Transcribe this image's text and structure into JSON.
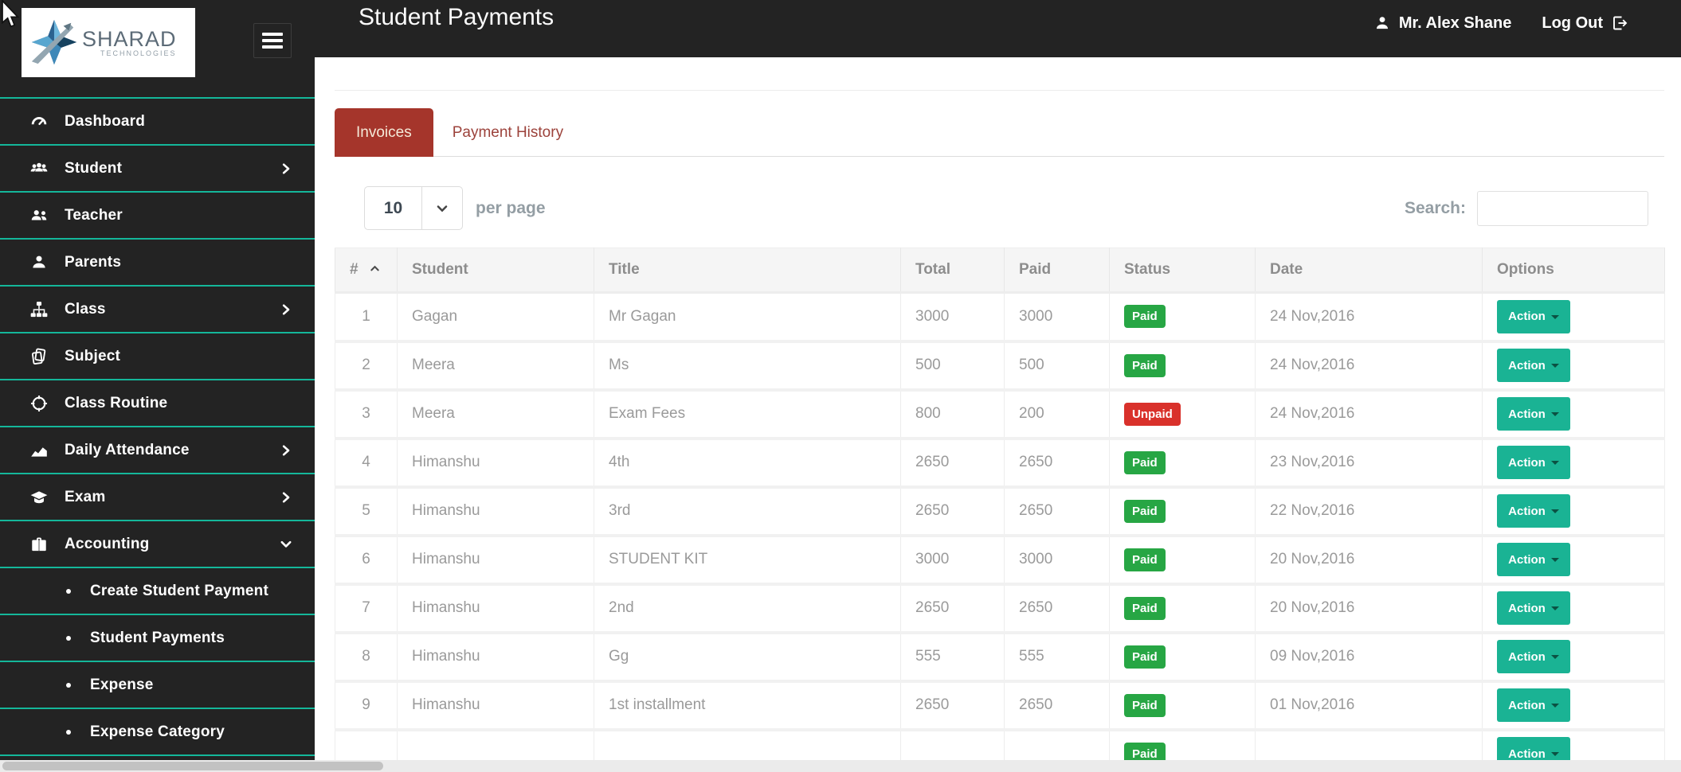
{
  "colors": {
    "header_bg": "#232323",
    "accent_teal": "#14b79a",
    "action_teal": "#1ab394",
    "active_tab_red": "#a5352b",
    "paid_green": "#27a644",
    "unpaid_red": "#d9312b"
  },
  "logo": {
    "brand": "SHARAD",
    "sub": "TECHNOLOGIES"
  },
  "header": {
    "title": "Student Payments",
    "user": "Mr. Alex Shane",
    "logout": "Log Out"
  },
  "sidebar": {
    "items": [
      {
        "label": "Dashboard",
        "icon": "gauge-icon"
      },
      {
        "label": "Student",
        "icon": "students-icon",
        "chevron": "right"
      },
      {
        "label": "Teacher",
        "icon": "teachers-icon"
      },
      {
        "label": "Parents",
        "icon": "parent-icon"
      },
      {
        "label": "Class",
        "icon": "sitemap-icon",
        "chevron": "right"
      },
      {
        "label": "Subject",
        "icon": "books-icon"
      },
      {
        "label": "Class Routine",
        "icon": "target-icon"
      },
      {
        "label": "Daily Attendance",
        "icon": "chart-icon",
        "chevron": "right"
      },
      {
        "label": "Exam",
        "icon": "graduation-icon",
        "chevron": "right"
      },
      {
        "label": "Accounting",
        "icon": "briefcase-icon",
        "chevron": "down"
      },
      {
        "label": "Create Student Payment",
        "sub": true
      },
      {
        "label": "Student Payments",
        "sub": true
      },
      {
        "label": "Expense",
        "sub": true
      },
      {
        "label": "Expense Category",
        "sub": true
      }
    ]
  },
  "tabs": [
    {
      "label": "Invoices",
      "active": true
    },
    {
      "label": "Payment History",
      "active": false
    }
  ],
  "controls": {
    "per_page_value": "10",
    "per_page_label": "per page",
    "search_label": "Search:",
    "search_value": ""
  },
  "table": {
    "columns": [
      "#",
      "Student",
      "Title",
      "Total",
      "Paid",
      "Status",
      "Date",
      "Options"
    ],
    "sorted_column": "#",
    "action_label": "Action",
    "rows": [
      {
        "num": "1",
        "student": "Gagan",
        "title": "Mr Gagan",
        "total": "3000",
        "paid": "3000",
        "status": "Paid",
        "date": "24 Nov,2016"
      },
      {
        "num": "2",
        "student": "Meera",
        "title": "Ms",
        "total": "500",
        "paid": "500",
        "status": "Paid",
        "date": "24 Nov,2016"
      },
      {
        "num": "3",
        "student": "Meera",
        "title": "Exam Fees",
        "total": "800",
        "paid": "200",
        "status": "Unpaid",
        "date": "24 Nov,2016"
      },
      {
        "num": "4",
        "student": "Himanshu",
        "title": "4th",
        "total": "2650",
        "paid": "2650",
        "status": "Paid",
        "date": "23 Nov,2016"
      },
      {
        "num": "5",
        "student": "Himanshu",
        "title": "3rd",
        "total": "2650",
        "paid": "2650",
        "status": "Paid",
        "date": "22 Nov,2016"
      },
      {
        "num": "6",
        "student": "Himanshu",
        "title": "STUDENT KIT",
        "total": "3000",
        "paid": "3000",
        "status": "Paid",
        "date": "20 Nov,2016"
      },
      {
        "num": "7",
        "student": "Himanshu",
        "title": "2nd",
        "total": "2650",
        "paid": "2650",
        "status": "Paid",
        "date": "20 Nov,2016"
      },
      {
        "num": "8",
        "student": "Himanshu",
        "title": "Gg",
        "total": "555",
        "paid": "555",
        "status": "Paid",
        "date": "09 Nov,2016"
      },
      {
        "num": "9",
        "student": "Himanshu",
        "title": "1st installment",
        "total": "2650",
        "paid": "2650",
        "status": "Paid",
        "date": "01 Nov,2016"
      },
      {
        "num": "",
        "student": "",
        "title": "",
        "total": "",
        "paid": "",
        "status": "Paid",
        "date": ""
      }
    ]
  }
}
